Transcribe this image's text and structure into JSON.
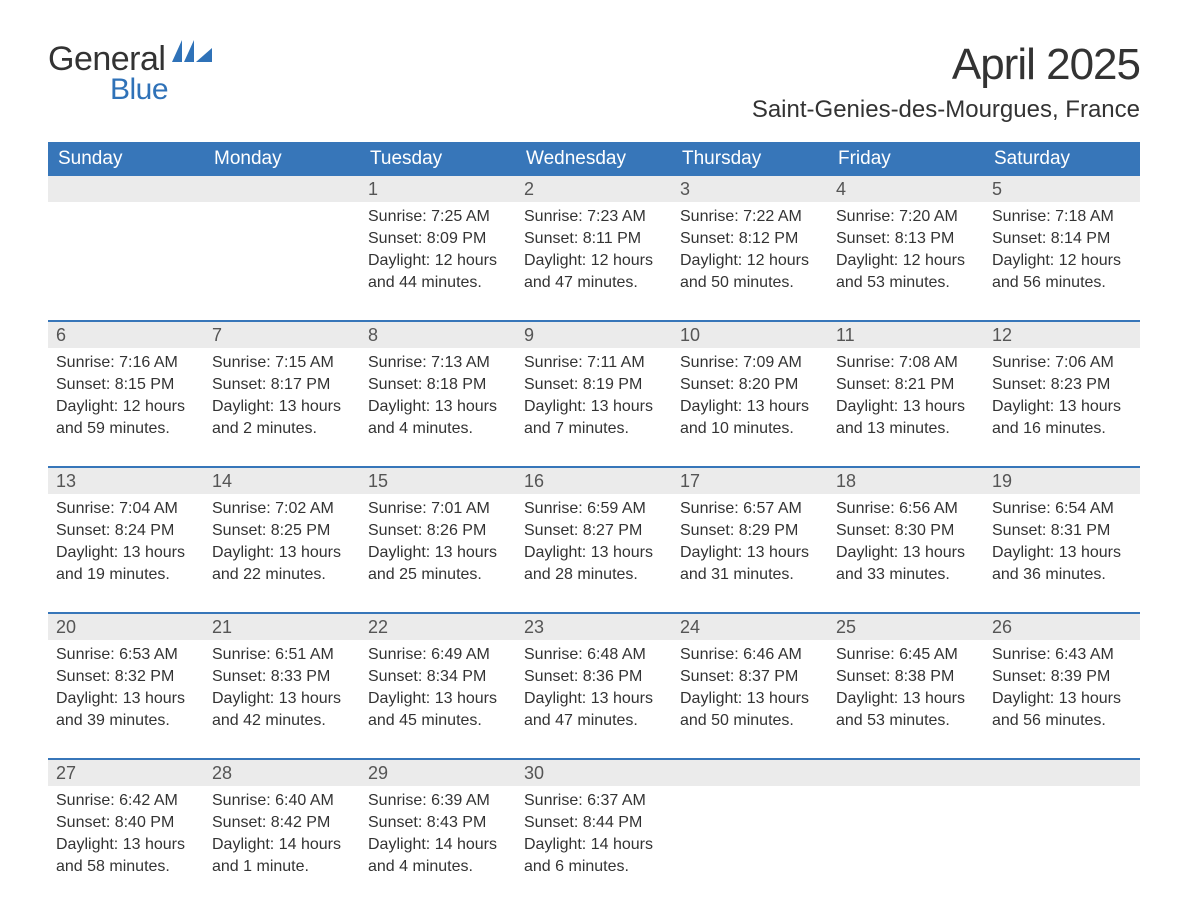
{
  "logo": {
    "main": "General",
    "sub": "Blue",
    "flag_color": "#2f72b8"
  },
  "title": "April 2025",
  "location": "Saint-Genies-des-Mourgues, France",
  "colors": {
    "header_bg": "#3776b9",
    "header_fg": "#ffffff",
    "daynum_bg": "#ebebeb",
    "daynum_fg": "#555555",
    "body_fg": "#333333",
    "row_divider": "#3776b9",
    "page_bg": "#ffffff",
    "accent": "#2f72b8"
  },
  "typography": {
    "title_fontsize": 44,
    "location_fontsize": 24,
    "header_fontsize": 19,
    "daynum_fontsize": 18,
    "body_fontsize": 16
  },
  "weekday_headers": [
    "Sunday",
    "Monday",
    "Tuesday",
    "Wednesday",
    "Thursday",
    "Friday",
    "Saturday"
  ],
  "weeks": [
    [
      {
        "day": null
      },
      {
        "day": null
      },
      {
        "day": 1,
        "sunrise": "7:25 AM",
        "sunset": "8:09 PM",
        "daylight": "12 hours and 44 minutes."
      },
      {
        "day": 2,
        "sunrise": "7:23 AM",
        "sunset": "8:11 PM",
        "daylight": "12 hours and 47 minutes."
      },
      {
        "day": 3,
        "sunrise": "7:22 AM",
        "sunset": "8:12 PM",
        "daylight": "12 hours and 50 minutes."
      },
      {
        "day": 4,
        "sunrise": "7:20 AM",
        "sunset": "8:13 PM",
        "daylight": "12 hours and 53 minutes."
      },
      {
        "day": 5,
        "sunrise": "7:18 AM",
        "sunset": "8:14 PM",
        "daylight": "12 hours and 56 minutes."
      }
    ],
    [
      {
        "day": 6,
        "sunrise": "7:16 AM",
        "sunset": "8:15 PM",
        "daylight": "12 hours and 59 minutes."
      },
      {
        "day": 7,
        "sunrise": "7:15 AM",
        "sunset": "8:17 PM",
        "daylight": "13 hours and 2 minutes."
      },
      {
        "day": 8,
        "sunrise": "7:13 AM",
        "sunset": "8:18 PM",
        "daylight": "13 hours and 4 minutes."
      },
      {
        "day": 9,
        "sunrise": "7:11 AM",
        "sunset": "8:19 PM",
        "daylight": "13 hours and 7 minutes."
      },
      {
        "day": 10,
        "sunrise": "7:09 AM",
        "sunset": "8:20 PM",
        "daylight": "13 hours and 10 minutes."
      },
      {
        "day": 11,
        "sunrise": "7:08 AM",
        "sunset": "8:21 PM",
        "daylight": "13 hours and 13 minutes."
      },
      {
        "day": 12,
        "sunrise": "7:06 AM",
        "sunset": "8:23 PM",
        "daylight": "13 hours and 16 minutes."
      }
    ],
    [
      {
        "day": 13,
        "sunrise": "7:04 AM",
        "sunset": "8:24 PM",
        "daylight": "13 hours and 19 minutes."
      },
      {
        "day": 14,
        "sunrise": "7:02 AM",
        "sunset": "8:25 PM",
        "daylight": "13 hours and 22 minutes."
      },
      {
        "day": 15,
        "sunrise": "7:01 AM",
        "sunset": "8:26 PM",
        "daylight": "13 hours and 25 minutes."
      },
      {
        "day": 16,
        "sunrise": "6:59 AM",
        "sunset": "8:27 PM",
        "daylight": "13 hours and 28 minutes."
      },
      {
        "day": 17,
        "sunrise": "6:57 AM",
        "sunset": "8:29 PM",
        "daylight": "13 hours and 31 minutes."
      },
      {
        "day": 18,
        "sunrise": "6:56 AM",
        "sunset": "8:30 PM",
        "daylight": "13 hours and 33 minutes."
      },
      {
        "day": 19,
        "sunrise": "6:54 AM",
        "sunset": "8:31 PM",
        "daylight": "13 hours and 36 minutes."
      }
    ],
    [
      {
        "day": 20,
        "sunrise": "6:53 AM",
        "sunset": "8:32 PM",
        "daylight": "13 hours and 39 minutes."
      },
      {
        "day": 21,
        "sunrise": "6:51 AM",
        "sunset": "8:33 PM",
        "daylight": "13 hours and 42 minutes."
      },
      {
        "day": 22,
        "sunrise": "6:49 AM",
        "sunset": "8:34 PM",
        "daylight": "13 hours and 45 minutes."
      },
      {
        "day": 23,
        "sunrise": "6:48 AM",
        "sunset": "8:36 PM",
        "daylight": "13 hours and 47 minutes."
      },
      {
        "day": 24,
        "sunrise": "6:46 AM",
        "sunset": "8:37 PM",
        "daylight": "13 hours and 50 minutes."
      },
      {
        "day": 25,
        "sunrise": "6:45 AM",
        "sunset": "8:38 PM",
        "daylight": "13 hours and 53 minutes."
      },
      {
        "day": 26,
        "sunrise": "6:43 AM",
        "sunset": "8:39 PM",
        "daylight": "13 hours and 56 minutes."
      }
    ],
    [
      {
        "day": 27,
        "sunrise": "6:42 AM",
        "sunset": "8:40 PM",
        "daylight": "13 hours and 58 minutes."
      },
      {
        "day": 28,
        "sunrise": "6:40 AM",
        "sunset": "8:42 PM",
        "daylight": "14 hours and 1 minute."
      },
      {
        "day": 29,
        "sunrise": "6:39 AM",
        "sunset": "8:43 PM",
        "daylight": "14 hours and 4 minutes."
      },
      {
        "day": 30,
        "sunrise": "6:37 AM",
        "sunset": "8:44 PM",
        "daylight": "14 hours and 6 minutes."
      },
      {
        "day": null
      },
      {
        "day": null
      },
      {
        "day": null
      }
    ]
  ],
  "labels": {
    "sunrise": "Sunrise: ",
    "sunset": "Sunset: ",
    "daylight": "Daylight: "
  }
}
